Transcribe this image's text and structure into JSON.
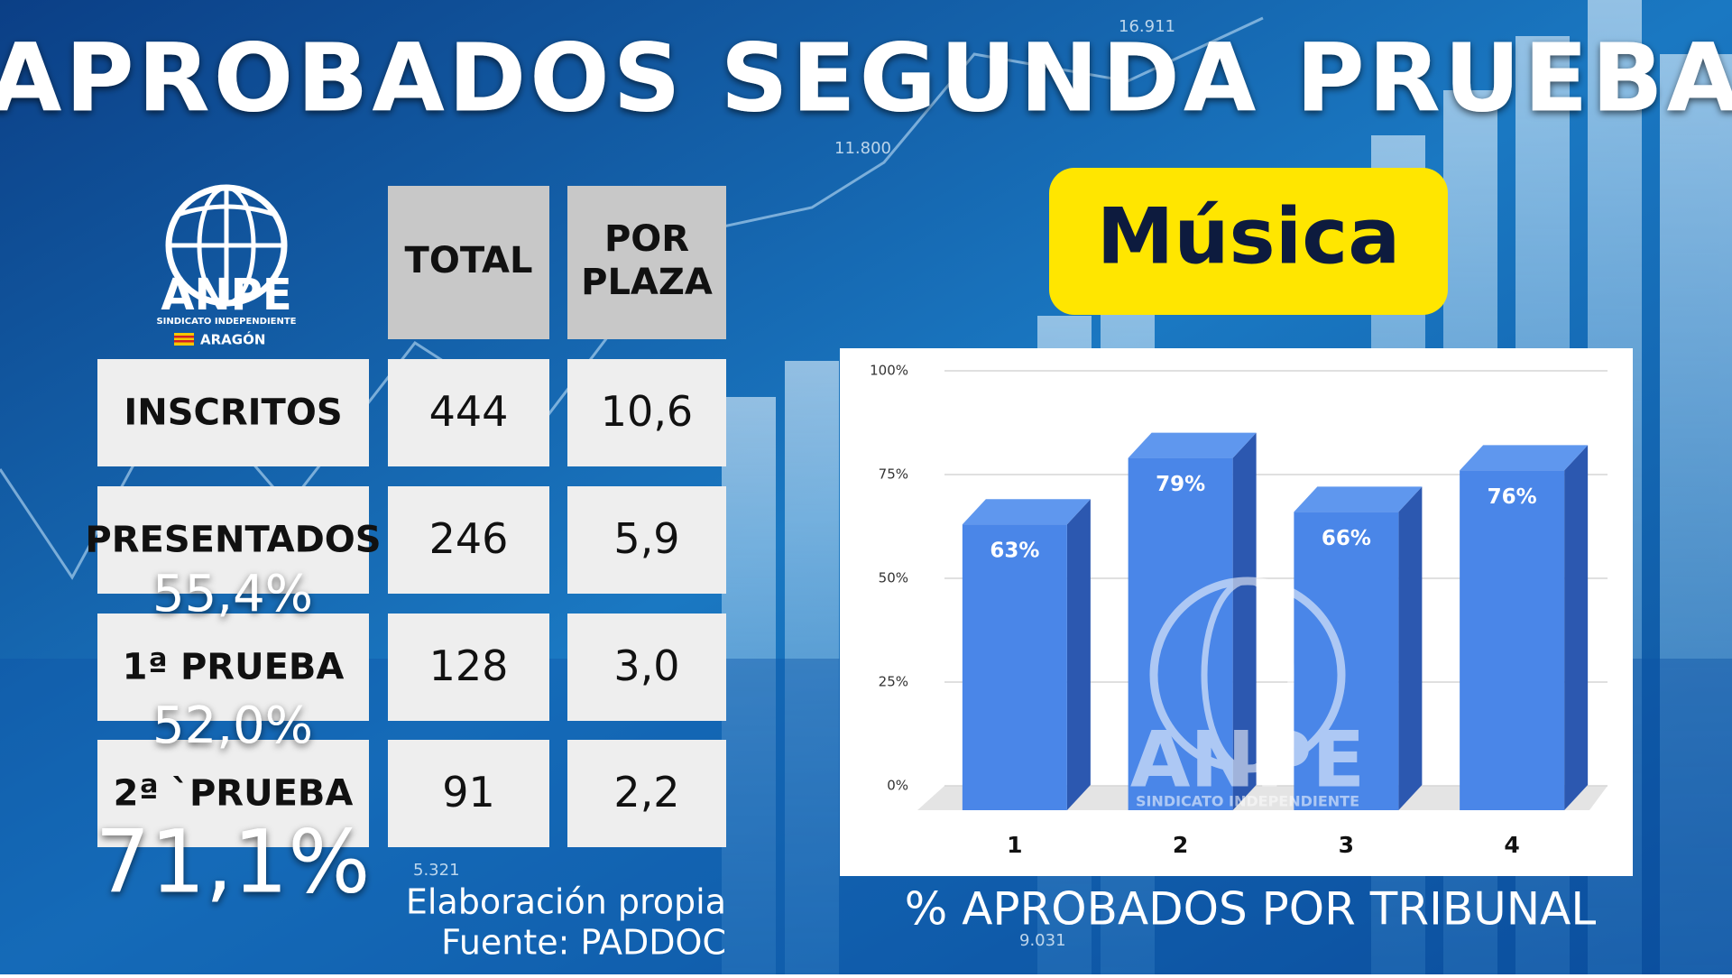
{
  "header": {
    "title": "APROBADOS SEGUNDA PRUEBA",
    "subject": "Música"
  },
  "logo": {
    "name": "ANPE",
    "subtitle": "SINDICATO INDEPENDIENTE",
    "region": "ARAGÓN"
  },
  "background": {
    "labels": [
      "16.911",
      "11.800",
      "5.321",
      "9.031"
    ]
  },
  "table": {
    "header": [
      "TOTAL",
      "POR PLAZA"
    ],
    "rows": [
      [
        "INSCRITOS",
        "444",
        "10,6"
      ],
      [
        "PRESENTADOS",
        "246",
        "5,9"
      ],
      [
        "1ª PRUEBA",
        "128",
        "3,0"
      ],
      [
        "2ª `PRUEBA",
        "91",
        "2,2"
      ]
    ],
    "percentages": [
      "55,4%",
      "52,0%",
      "71,1%"
    ]
  },
  "source": [
    "Elaboración propia",
    "Fuente: PADDOC"
  ],
  "chart_data": {
    "type": "bar",
    "title": "% APROBADOS POR TRIBUNAL",
    "categories": [
      "1",
      "2",
      "3",
      "4"
    ],
    "values": [
      63,
      79,
      66,
      76
    ],
    "value_labels": [
      "63%",
      "79%",
      "66%",
      "76%"
    ],
    "color": "#4a86e8",
    "ylim": [
      0,
      100
    ],
    "yticks": [
      {
        "value": 0,
        "label": "0%"
      },
      {
        "value": 25,
        "label": "25%"
      },
      {
        "value": 50,
        "label": "50%"
      },
      {
        "value": 75,
        "label": "75%"
      },
      {
        "value": 100,
        "label": "100%"
      }
    ],
    "grid": true
  }
}
